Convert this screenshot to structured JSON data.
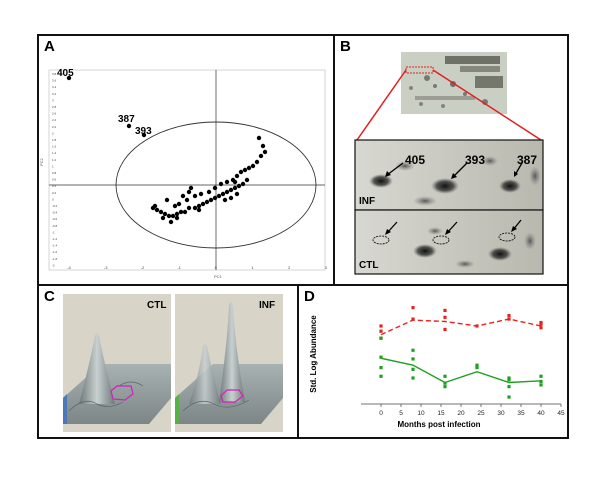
{
  "figure": {
    "panel_labels": [
      "A",
      "B",
      "C",
      "D"
    ]
  },
  "pca": {
    "labeled_points": [
      "405",
      "387",
      "393"
    ],
    "xticks": [
      "-4",
      "-3",
      "-2",
      "-1",
      "0",
      "1",
      "2",
      "3"
    ],
    "yticks": [
      "3.8",
      "3.6",
      "3.4",
      "3.2",
      "3",
      "2.8",
      "2.6",
      "2.4",
      "2.2",
      "2",
      "1.8",
      "1.6",
      "1.4",
      "1.2",
      "1",
      "0.8",
      "0.6",
      "0.4",
      "0.2",
      "0",
      "-0.2",
      "-0.4",
      "-0.6",
      "-0.8",
      "-1",
      "-1.2",
      "-1.4",
      "-1.6",
      "-1.8",
      "-2"
    ],
    "xaxis_label": "PC1",
    "yaxis_label": "PC2"
  },
  "gel": {
    "spot_labels": [
      "405",
      "393",
      "387"
    ],
    "inf_label": "INF",
    "ctl_label": "CTL"
  },
  "surface": {
    "ctl_label": "CTL",
    "inf_label": "INF"
  },
  "chart_data": {
    "type": "line",
    "xlabel": "Months post infection",
    "ylabel": "Std. Log Abundance",
    "xlim": [
      -5,
      45
    ],
    "ylim": [
      -2.0,
      1.0
    ],
    "xticks": [
      0,
      5,
      10,
      15,
      20,
      25,
      30,
      35,
      40,
      45
    ],
    "series": [
      {
        "name": "INF",
        "color": "#e8231c",
        "style": "dashed",
        "x": [
          0,
          8,
          16,
          24,
          32,
          40
        ],
        "mean": [
          0.0,
          0.42,
          0.38,
          0.25,
          0.45,
          0.25
        ],
        "points": [
          [
            0,
            0.25
          ],
          [
            0,
            0.1
          ],
          [
            0,
            -0.1
          ],
          [
            8,
            0.78
          ],
          [
            8,
            0.45
          ],
          [
            16,
            0.7
          ],
          [
            16,
            0.5
          ],
          [
            16,
            0.15
          ],
          [
            24,
            0.25
          ],
          [
            32,
            0.55
          ],
          [
            32,
            0.45
          ],
          [
            40,
            0.35
          ],
          [
            40,
            0.3
          ],
          [
            40,
            0.2
          ]
        ]
      },
      {
        "name": "CTL",
        "color": "#20a020",
        "style": "solid",
        "x": [
          0,
          8,
          16,
          24,
          32,
          40
        ],
        "mean": [
          -0.68,
          -0.88,
          -1.38,
          -1.07,
          -1.38,
          -1.33
        ],
        "points": [
          [
            0,
            -0.1
          ],
          [
            0,
            -0.65
          ],
          [
            0,
            -0.95
          ],
          [
            0,
            -1.2
          ],
          [
            8,
            -0.45
          ],
          [
            8,
            -0.7
          ],
          [
            8,
            -1.0
          ],
          [
            8,
            -1.25
          ],
          [
            16,
            -1.2
          ],
          [
            16,
            -1.4
          ],
          [
            16,
            -1.5
          ],
          [
            24,
            -0.88
          ],
          [
            24,
            -0.95
          ],
          [
            32,
            -1.25
          ],
          [
            32,
            -1.3
          ],
          [
            32,
            -1.5
          ],
          [
            32,
            -1.8
          ],
          [
            40,
            -1.2
          ],
          [
            40,
            -1.35
          ],
          [
            40,
            -1.45
          ]
        ]
      }
    ]
  }
}
